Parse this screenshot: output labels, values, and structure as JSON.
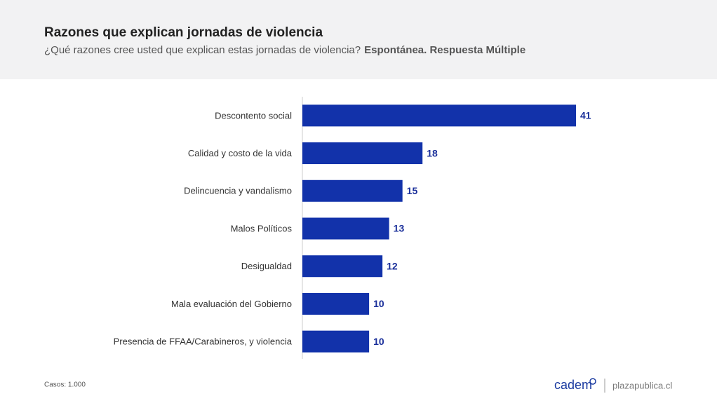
{
  "chart_data": {
    "type": "bar",
    "orientation": "horizontal",
    "title": "Razones que explican jornadas de violencia",
    "subtitle": "¿Qué razones cree usted que explican estas jornadas de violencia?",
    "subtitle_bold": "Espontánea. Respuesta Múltiple",
    "categories": [
      "Descontento social",
      "Calidad y costo de la vida",
      "Delincuencia y vandalismo",
      "Malos Políticos",
      "Desigualdad",
      "Mala evaluación del Gobierno",
      "Presencia de FFAA/Carabineros, y violencia"
    ],
    "values": [
      41,
      18,
      15,
      13,
      12,
      10,
      10
    ],
    "color": "#1232aa",
    "note": "Casos: 1.000",
    "logo": "cadem",
    "source": "plazapublica.cl"
  }
}
